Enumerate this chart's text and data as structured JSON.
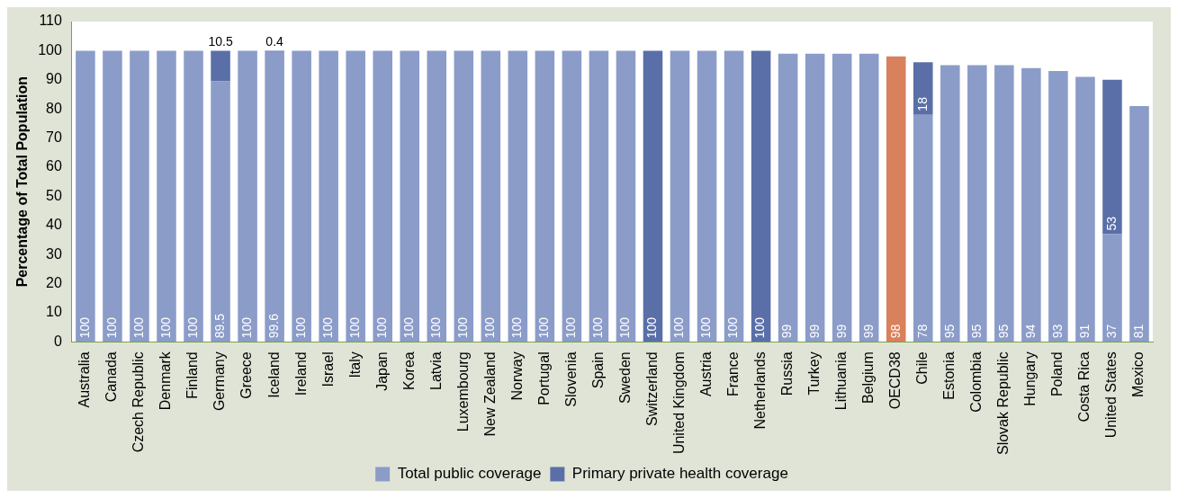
{
  "chart_data": {
    "type": "bar",
    "stacked": true,
    "ylabel": "Percentage of Total Population",
    "categories": [
      "Australia",
      "Canada",
      "Czech Republic",
      "Denmark",
      "Finland",
      "Germany",
      "Greece",
      "Iceland",
      "Ireland",
      "Israel",
      "Italy",
      "Japan",
      "Korea",
      "Latvia",
      "Luxembourg",
      "New Zealand",
      "Norway",
      "Portugal",
      "Slovenia",
      "Spain",
      "Sweden",
      "Switzerland",
      "United Kingdom",
      "Austria",
      "France",
      "Netherlands",
      "Russia",
      "Turkey",
      "Lithuania",
      "Belgium",
      "OECD38",
      "Chile",
      "Estonia",
      "Colombia",
      "Slovak Republic",
      "Hungary",
      "Poland",
      "Costa Rica",
      "United States",
      "Mexico"
    ],
    "series": [
      {
        "name": "Total public coverage",
        "color": "#8b9cc9",
        "colors": [
          "#8b9cc9",
          "#8b9cc9",
          "#8b9cc9",
          "#8b9cc9",
          "#8b9cc9",
          "#8b9cc9",
          "#8b9cc9",
          "#8b9cc9",
          "#8b9cc9",
          "#8b9cc9",
          "#8b9cc9",
          "#8b9cc9",
          "#8b9cc9",
          "#8b9cc9",
          "#8b9cc9",
          "#8b9cc9",
          "#8b9cc9",
          "#8b9cc9",
          "#8b9cc9",
          "#8b9cc9",
          "#8b9cc9",
          "#8b9cc9",
          "#8b9cc9",
          "#8b9cc9",
          "#8b9cc9",
          "#8b9cc9",
          "#8b9cc9",
          "#8b9cc9",
          "#8b9cc9",
          "#8b9cc9",
          "#d9805c",
          "#8b9cc9",
          "#8b9cc9",
          "#8b9cc9",
          "#8b9cc9",
          "#8b9cc9",
          "#8b9cc9",
          "#8b9cc9",
          "#8b9cc9",
          "#8b9cc9"
        ],
        "values": [
          100,
          100,
          100,
          100,
          100,
          89.5,
          100,
          99.6,
          100,
          100,
          100,
          100,
          100,
          100,
          100,
          100,
          100,
          100,
          100,
          100,
          100,
          null,
          100,
          100,
          100,
          null,
          99,
          99,
          99,
          99,
          98,
          78,
          95,
          95,
          95,
          94,
          93,
          91,
          37,
          81
        ]
      },
      {
        "name": "Primary private health coverage",
        "color": "#5a6fa8",
        "values": [
          null,
          null,
          null,
          null,
          null,
          10.5,
          null,
          0.4,
          null,
          null,
          null,
          null,
          null,
          null,
          null,
          null,
          null,
          null,
          null,
          null,
          null,
          100,
          null,
          null,
          null,
          100,
          null,
          null,
          null,
          null,
          null,
          18,
          null,
          null,
          null,
          null,
          null,
          null,
          53,
          null
        ]
      }
    ],
    "ylim": [
      0,
      110
    ],
    "yticks": [
      0,
      10,
      20,
      30,
      40,
      50,
      60,
      70,
      80,
      90,
      100,
      110
    ],
    "grid": false,
    "legend": "bottom",
    "data_labels": true
  }
}
